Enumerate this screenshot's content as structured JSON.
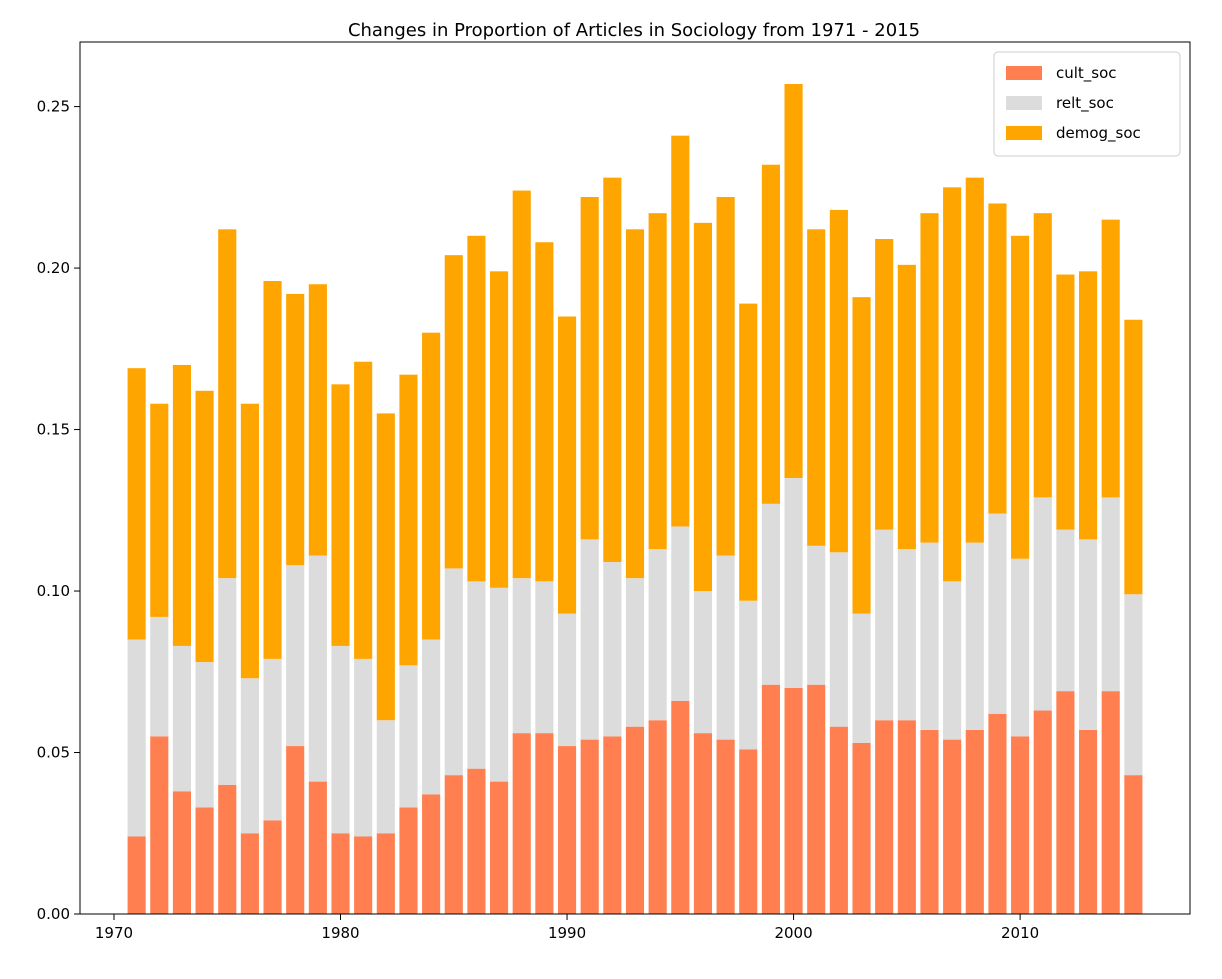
{
  "chart_data": {
    "type": "bar",
    "stacked": true,
    "title": "Changes in Proportion of Articles in Sociology from 1971 - 2015",
    "xlabel": "",
    "ylabel": "",
    "xlim": [
      1968.5,
      2017.5
    ],
    "ylim": [
      0,
      0.27
    ],
    "x_ticks": [
      1970,
      1980,
      1990,
      2000,
      2010
    ],
    "x_tick_labels": [
      "1970",
      "1980",
      "1990",
      "2000",
      "2010"
    ],
    "y_ticks": [
      0,
      0.05,
      0.1,
      0.15,
      0.2,
      0.25
    ],
    "y_tick_labels": [
      "0.00",
      "0.05",
      "0.10",
      "0.15",
      "0.20",
      "0.25"
    ],
    "grid": false,
    "legend_position": "top-right",
    "x": [
      1971,
      1972,
      1973,
      1974,
      1975,
      1976,
      1977,
      1978,
      1979,
      1980,
      1981,
      1982,
      1983,
      1984,
      1985,
      1986,
      1987,
      1988,
      1989,
      1990,
      1991,
      1992,
      1993,
      1994,
      1995,
      1996,
      1997,
      1998,
      1999,
      2000,
      2001,
      2002,
      2003,
      2004,
      2005,
      2006,
      2007,
      2008,
      2009,
      2010,
      2011,
      2012,
      2013,
      2014,
      2015
    ],
    "series": [
      {
        "name": "cult_soc",
        "color": "#ff7f50",
        "values": [
          0.024,
          0.055,
          0.038,
          0.033,
          0.04,
          0.025,
          0.029,
          0.052,
          0.041,
          0.025,
          0.024,
          0.025,
          0.033,
          0.037,
          0.043,
          0.045,
          0.041,
          0.056,
          0.056,
          0.052,
          0.054,
          0.055,
          0.058,
          0.06,
          0.066,
          0.056,
          0.054,
          0.051,
          0.071,
          0.07,
          0.071,
          0.058,
          0.053,
          0.06,
          0.06,
          0.057,
          0.054,
          0.057,
          0.062,
          0.055,
          0.063,
          0.069,
          0.057,
          0.069,
          0.043
        ]
      },
      {
        "name": "relt_soc",
        "color": "#dcdcdc",
        "values": [
          0.061,
          0.037,
          0.045,
          0.045,
          0.064,
          0.048,
          0.05,
          0.056,
          0.07,
          0.058,
          0.055,
          0.035,
          0.044,
          0.048,
          0.064,
          0.058,
          0.06,
          0.048,
          0.047,
          0.041,
          0.062,
          0.054,
          0.046,
          0.053,
          0.054,
          0.044,
          0.057,
          0.046,
          0.056,
          0.065,
          0.043,
          0.054,
          0.04,
          0.059,
          0.053,
          0.058,
          0.049,
          0.058,
          0.062,
          0.055,
          0.066,
          0.05,
          0.059,
          0.06,
          0.056
        ]
      },
      {
        "name": "demog_soc",
        "color": "#ffa500",
        "values": [
          0.084,
          0.066,
          0.087,
          0.084,
          0.108,
          0.085,
          0.117,
          0.084,
          0.084,
          0.081,
          0.092,
          0.095,
          0.09,
          0.095,
          0.097,
          0.107,
          0.098,
          0.12,
          0.105,
          0.092,
          0.106,
          0.119,
          0.108,
          0.104,
          0.121,
          0.114,
          0.111,
          0.092,
          0.105,
          0.122,
          0.098,
          0.106,
          0.098,
          0.09,
          0.088,
          0.102,
          0.122,
          0.113,
          0.096,
          0.1,
          0.088,
          0.079,
          0.083,
          0.086,
          0.085
        ]
      }
    ]
  }
}
